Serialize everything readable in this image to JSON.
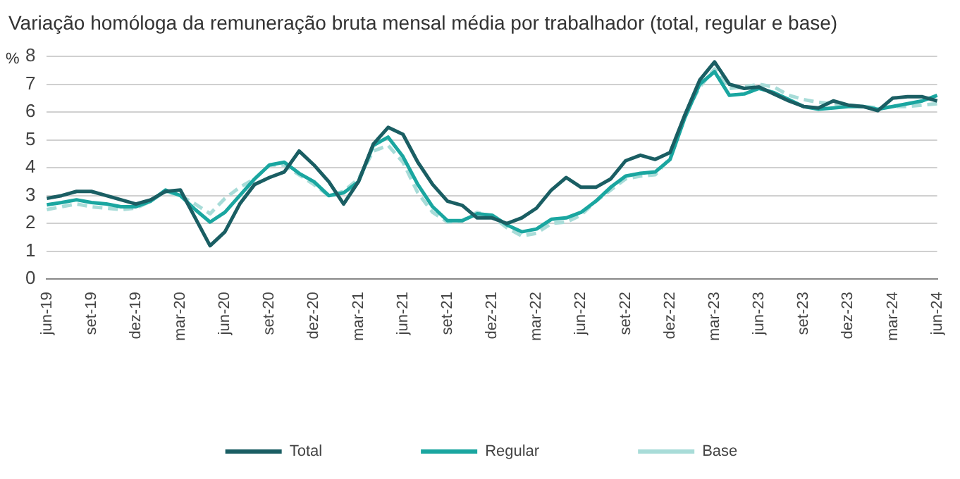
{
  "chart_data": {
    "type": "line",
    "title": "Variação homóloga da remuneração bruta mensal média por trabalhador (total, regular e base)",
    "ylabel": "%",
    "categories": [
      "jun-19",
      null,
      null,
      "set-19",
      null,
      null,
      "dez-19",
      null,
      null,
      "mar-20",
      null,
      null,
      "jun-20",
      null,
      null,
      "set-20",
      null,
      null,
      "dez-20",
      null,
      null,
      "mar-21",
      null,
      null,
      "jun-21",
      null,
      null,
      "set-21",
      null,
      null,
      "dez-21",
      null,
      null,
      "mar-22",
      null,
      null,
      "jun-22",
      null,
      null,
      "set-22",
      null,
      null,
      "dez-22",
      null,
      null,
      "mar-23",
      null,
      null,
      "jun-23",
      null,
      null,
      "set-23",
      null,
      null,
      "dez-23",
      null,
      null,
      "mar-24",
      null,
      null,
      "jun-24"
    ],
    "series": [
      {
        "name": "Total",
        "color": "#1a5e63",
        "line_style": "solid",
        "values": [
          2.9,
          3.0,
          3.15,
          3.15,
          3.0,
          2.85,
          2.7,
          2.85,
          3.15,
          3.2,
          2.2,
          1.2,
          1.7,
          2.7,
          3.4,
          3.65,
          3.85,
          4.6,
          4.1,
          3.5,
          2.7,
          3.5,
          4.85,
          5.45,
          5.2,
          4.2,
          3.4,
          2.8,
          2.65,
          2.2,
          2.2,
          2.0,
          2.2,
          2.55,
          3.2,
          3.65,
          3.3,
          3.3,
          3.6,
          4.25,
          4.45,
          4.3,
          4.55,
          5.9,
          7.15,
          7.8,
          7.0,
          6.85,
          6.9,
          6.65,
          6.4,
          6.2,
          6.15,
          6.4,
          6.25,
          6.2,
          6.05,
          6.5,
          6.55,
          6.55,
          6.4
        ]
      },
      {
        "name": "Regular",
        "color": "#1aa6a0",
        "line_style": "solid",
        "values": [
          2.67,
          2.75,
          2.85,
          2.75,
          2.7,
          2.6,
          2.6,
          2.8,
          3.2,
          3.0,
          2.5,
          2.05,
          2.4,
          3.0,
          3.6,
          4.1,
          4.2,
          3.8,
          3.5,
          3.0,
          3.1,
          3.5,
          4.8,
          5.1,
          4.4,
          3.4,
          2.6,
          2.1,
          2.1,
          2.35,
          2.3,
          1.95,
          1.7,
          1.8,
          2.15,
          2.2,
          2.4,
          2.8,
          3.3,
          3.7,
          3.8,
          3.85,
          4.3,
          5.8,
          7.0,
          7.45,
          6.6,
          6.65,
          6.85,
          6.7,
          6.45,
          6.2,
          6.1,
          6.15,
          6.2,
          6.2,
          6.1,
          6.2,
          6.3,
          6.4,
          6.6
        ]
      },
      {
        "name": "Base",
        "color": "#a8dcd8",
        "line_style": "dashed",
        "values": [
          2.5,
          2.6,
          2.7,
          2.6,
          2.55,
          2.5,
          2.55,
          2.8,
          3.15,
          3.0,
          2.7,
          2.35,
          2.9,
          3.3,
          3.6,
          4.1,
          4.1,
          3.75,
          3.4,
          3.0,
          3.15,
          3.6,
          4.6,
          4.8,
          4.2,
          3.1,
          2.4,
          2.05,
          2.1,
          2.4,
          2.25,
          1.85,
          1.55,
          1.65,
          2.0,
          2.05,
          2.3,
          2.8,
          3.2,
          3.6,
          3.7,
          3.75,
          4.35,
          5.9,
          6.9,
          7.55,
          6.85,
          6.9,
          7.0,
          6.9,
          6.6,
          6.45,
          6.35,
          6.3,
          6.25,
          6.2,
          6.15,
          6.2,
          6.2,
          6.25,
          6.3
        ]
      }
    ],
    "ylim": [
      0,
      8
    ],
    "yticks": [
      0,
      1,
      2,
      3,
      4,
      5,
      6,
      7,
      8
    ],
    "grid": "y",
    "legend": "bottom"
  }
}
